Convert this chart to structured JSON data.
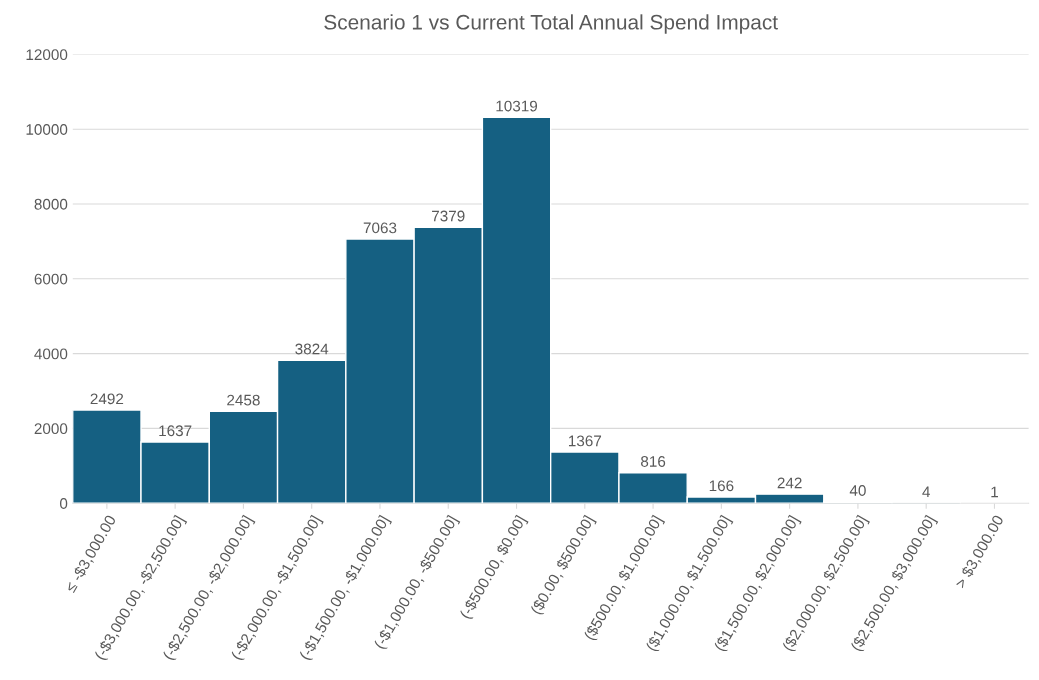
{
  "chart_data": {
    "type": "bar",
    "title": "Scenario 1 vs Current Total Annual Spend Impact",
    "categories": [
      "≤ -$3,000.00",
      "(-$3,000.00, -$2,500.00]",
      "(-$2,500.00, -$2,000.00]",
      "(-$2,000.00, -$1,500.00]",
      "(-$1,500.00, -$1,000.00]",
      "(-$1,000.00, -$500.00]",
      "(-$500.00, $0.00]",
      "($0.00, $500.00]",
      "($500.00, $1,000.00]",
      "($1,000.00, $1,500.00]",
      "($1,500.00, $2,000.00]",
      "($2,000.00, $2,500.00]",
      "($2,500.00, $3,000.00]",
      "> $3,000.00"
    ],
    "values": [
      2492,
      1637,
      2458,
      3824,
      7063,
      7379,
      10319,
      1367,
      816,
      166,
      242,
      40,
      4,
      1
    ],
    "color": "#156082",
    "ylim": [
      0,
      12000
    ],
    "yticks": [
      0,
      2000,
      4000,
      6000,
      8000,
      10000,
      12000
    ],
    "grid": "y",
    "data_labels": true
  }
}
